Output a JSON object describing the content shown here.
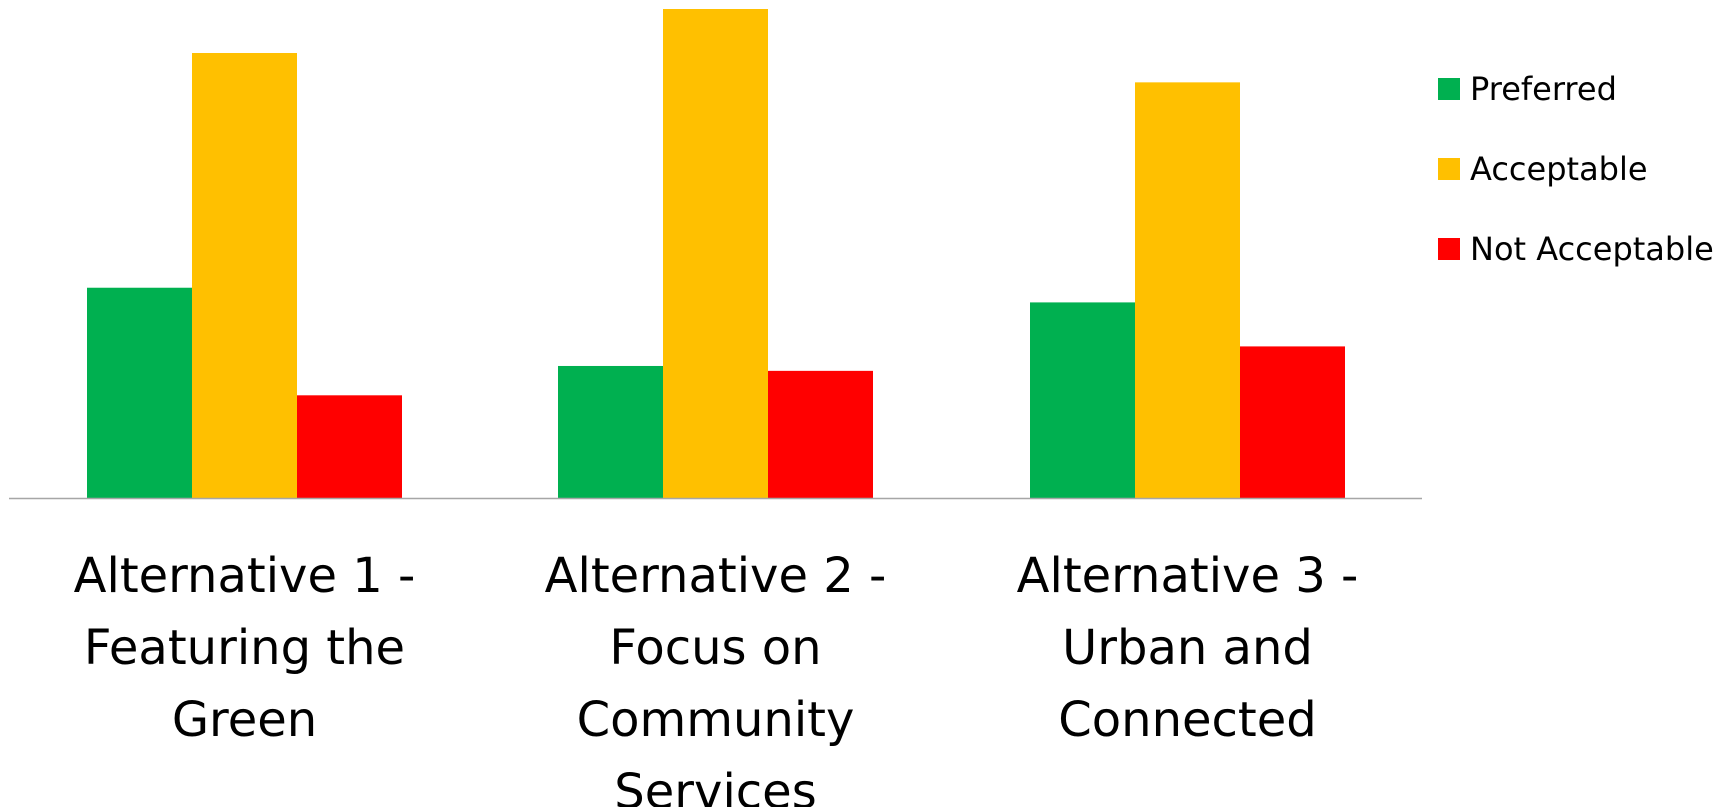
{
  "chart_data": {
    "type": "bar",
    "title": "",
    "xlabel": "",
    "ylabel": "",
    "ylim": [
      0,
      100
    ],
    "grid": false,
    "legend_position": "right",
    "categories": [
      [
        "Alternative 1 -",
        "Featuring the",
        "Green"
      ],
      [
        "Alternative 2 -",
        "Focus on",
        "Community",
        "Services"
      ],
      [
        "Alternative 3 -",
        "Urban and",
        "Connected"
      ]
    ],
    "series": [
      {
        "name": "Preferred",
        "color": "#00B050",
        "values": [
          43,
          27,
          40
        ]
      },
      {
        "name": "Acceptable",
        "color": "#FFC000",
        "values": [
          91,
          100,
          85
        ]
      },
      {
        "name": "Not Acceptable",
        "color": "#FF0000",
        "values": [
          21,
          26,
          31
        ]
      }
    ]
  }
}
